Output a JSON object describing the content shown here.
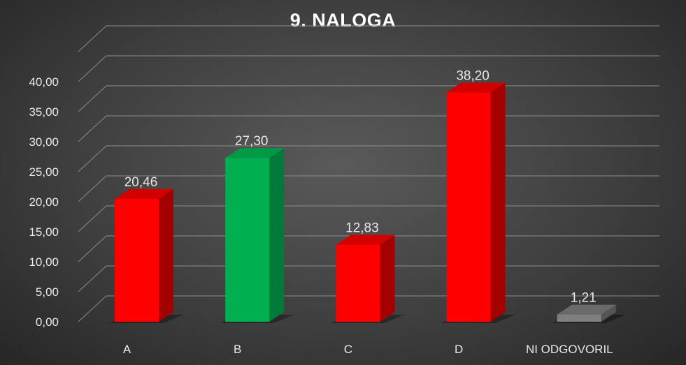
{
  "chart_data": {
    "type": "bar",
    "title": "9. NALOGA",
    "categories": [
      "A",
      "B",
      "C",
      "D",
      "NI ODGOVORIL"
    ],
    "values": [
      20.46,
      27.3,
      12.83,
      38.2,
      1.21
    ],
    "value_labels": [
      "20,46",
      "27,30",
      "12,83",
      "38,20",
      "1,21"
    ],
    "bar_colors": [
      "#ff0000",
      "#00b050",
      "#ff0000",
      "#ff0000",
      "#7f7f7f"
    ],
    "bar_side_colors": [
      "#a50000",
      "#007a38",
      "#a50000",
      "#a50000",
      "#555555"
    ],
    "bar_top_colors": [
      "#d40000",
      "#009a46",
      "#d40000",
      "#d40000",
      "#6a6a6a"
    ],
    "yticks": [
      0,
      5,
      10,
      15,
      20,
      25,
      30,
      35,
      40
    ],
    "ytick_labels": [
      "0,00",
      "5,00",
      "10,00",
      "15,00",
      "20,00",
      "25,00",
      "30,00",
      "35,00",
      "40,00"
    ],
    "ylim": [
      0,
      45
    ],
    "xlabel": "",
    "ylabel": "",
    "grid": true,
    "legend": "none",
    "style": "3d-column"
  }
}
